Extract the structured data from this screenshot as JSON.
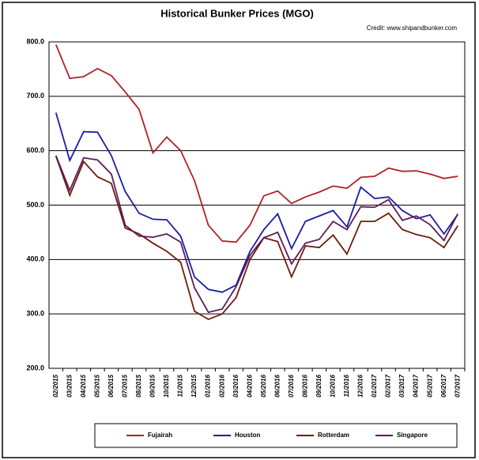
{
  "chart_data": {
    "type": "line",
    "title": "Historical Bunker Prices (MGO)",
    "credit": "Credit:  www.shipandbunker.com",
    "categories": [
      "02/2015",
      "03/2015",
      "04/2015",
      "05/2015",
      "06/2015",
      "07/2015",
      "08/2015",
      "09/2015",
      "10/2015",
      "11/2015",
      "12/2015",
      "01/2016",
      "02/2016",
      "03/2016",
      "04/2016",
      "05/2016",
      "06/2016",
      "07/2016",
      "08/2016",
      "09/2016",
      "10/2016",
      "11/2016",
      "12/2016",
      "01/2017",
      "02/2017",
      "03/2017",
      "04/2017",
      "05/2017",
      "06/2017",
      "07/2017"
    ],
    "series": [
      {
        "name": "Fujairah",
        "color": "#b0202a",
        "values": [
          795,
          733,
          736,
          751,
          738,
          708,
          676,
          596,
          625,
          600,
          545,
          463,
          434,
          432,
          463,
          517,
          526,
          503,
          515,
          524,
          535,
          531,
          551,
          553,
          568,
          562,
          563,
          557,
          549,
          553
        ]
      },
      {
        "name": "Houston",
        "color": "#1c1ca8",
        "values": [
          670,
          582,
          635,
          634,
          591,
          525,
          485,
          474,
          473,
          443,
          368,
          345,
          340,
          353,
          415,
          455,
          484,
          420,
          470,
          480,
          490,
          460,
          533,
          512,
          515,
          490,
          475,
          482,
          447,
          483
        ]
      },
      {
        "name": "Rotterdam",
        "color": "#6e1c0c",
        "values": [
          590,
          518,
          580,
          552,
          540,
          458,
          447,
          430,
          415,
          395,
          305,
          290,
          300,
          330,
          400,
          440,
          433,
          368,
          425,
          422,
          445,
          410,
          470,
          470,
          485,
          455,
          446,
          440,
          422,
          462
        ]
      },
      {
        "name": "Singapore",
        "color": "#5c1c5e",
        "values": [
          591,
          527,
          587,
          583,
          557,
          463,
          443,
          441,
          447,
          432,
          348,
          303,
          309,
          350,
          408,
          440,
          450,
          392,
          430,
          437,
          470,
          455,
          497,
          496,
          510,
          472,
          480,
          464,
          435,
          484
        ]
      }
    ],
    "ylim": [
      200,
      800
    ],
    "yticks": [
      {
        "value": 200,
        "label": "200.0"
      },
      {
        "value": 300,
        "label": "300.0"
      },
      {
        "value": 400,
        "label": "400.0"
      },
      {
        "value": 500,
        "label": "500.0"
      },
      {
        "value": 600,
        "label": "600.0"
      },
      {
        "value": 700,
        "label": "700.0"
      },
      {
        "value": 800,
        "label": "800.0"
      }
    ],
    "grid": true
  }
}
